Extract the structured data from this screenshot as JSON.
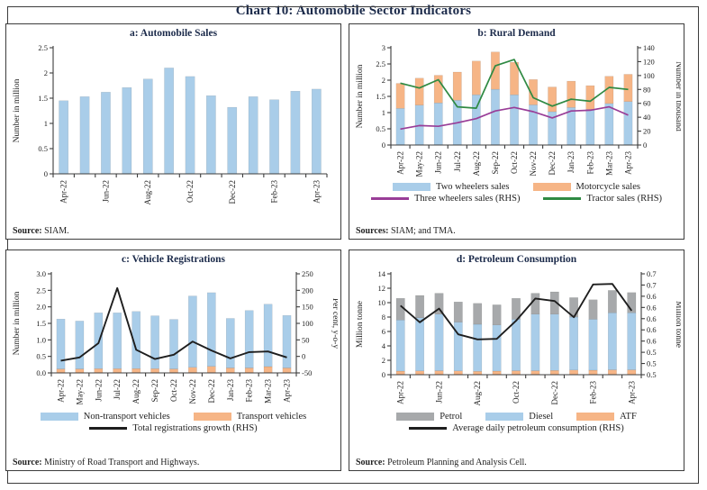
{
  "title": "Chart 10: Automobile Sector Indicators",
  "colors": {
    "bar_blue": "#A9CDE9",
    "bar_orange": "#F6B586",
    "bar_grey": "#A7A9AB",
    "line_purple": "#993D97",
    "line_green": "#2F8A43",
    "line_black": "#1E1E1E",
    "axis": "#3c3c3c",
    "title_text": "#1b2a4a"
  },
  "months": [
    "Apr-22",
    "May-22",
    "Jun-22",
    "Jul-22",
    "Aug-22",
    "Sep-22",
    "Oct-22",
    "Nov-22",
    "Dec-22",
    "Jan-23",
    "Feb-23",
    "Mar-23",
    "Apr-23"
  ],
  "chart_data": [
    {
      "type": "bar",
      "title": "a: Automobile Sales",
      "categories": [
        "Apr-22",
        "May-22",
        "Jun-22",
        "Jul-22",
        "Aug-22",
        "Sep-22",
        "Oct-22",
        "Nov-22",
        "Dec-22",
        "Jan-23",
        "Feb-23",
        "Mar-23",
        "Apr-23"
      ],
      "x_label_every": 2,
      "left_axis": {
        "label": "Number in million",
        "min": 0,
        "max": 2.5,
        "ticks": [
          "0",
          "0.5",
          "1",
          "1.5",
          "2",
          "2.5"
        ]
      },
      "bar_series": [
        {
          "name": "Automobile sales",
          "color_key": "bar_blue",
          "values": [
            1.45,
            1.53,
            1.62,
            1.71,
            1.88,
            2.1,
            1.93,
            1.55,
            1.32,
            1.53,
            1.47,
            1.64,
            1.68
          ]
        }
      ],
      "line_series": [],
      "legend_rows": [],
      "source_label": "Source:",
      "source_text": "SIAM."
    },
    {
      "type": "bar-line",
      "title": "b: Rural Demand",
      "categories": [
        "Apr-22",
        "May-22",
        "Jun-22",
        "Jul-22",
        "Aug-22",
        "Sep-22",
        "Oct-22",
        "Nov-22",
        "Dec-22",
        "Jan-23",
        "Feb-23",
        "Mar-23",
        "Apr-23"
      ],
      "x_label_every": 1,
      "left_axis": {
        "label": "Number in million",
        "min": 0,
        "max": 3,
        "ticks": [
          "0",
          "0.5",
          "1",
          "1.5",
          "2",
          "2.5",
          "3"
        ]
      },
      "right_axis": {
        "label": "Number in thousand",
        "min": 0,
        "max": 140,
        "ticks": [
          "0",
          "20",
          "40",
          "60",
          "80",
          "100",
          "120",
          "140"
        ]
      },
      "bar_series": [
        {
          "name": "Two wheelers sales",
          "color_key": "bar_blue",
          "values": [
            1.13,
            1.23,
            1.3,
            1.38,
            1.55,
            1.72,
            1.55,
            1.24,
            1.03,
            1.16,
            1.1,
            1.28,
            1.34
          ]
        },
        {
          "name": "Motorcycle sales",
          "color_key": "bar_orange",
          "values": [
            0.77,
            0.83,
            0.85,
            0.87,
            1.04,
            1.15,
            1.0,
            0.78,
            0.76,
            0.81,
            0.73,
            0.84,
            0.84
          ]
        }
      ],
      "line_series": [
        {
          "name": "Three wheelers sales (RHS)",
          "color_key": "line_purple",
          "axis": "right",
          "values": [
            23,
            28,
            27,
            32,
            38,
            49,
            54,
            48,
            39,
            49,
            50,
            55,
            43
          ]
        },
        {
          "name": "Tractor sales (RHS)",
          "color_key": "line_green",
          "axis": "right",
          "values": [
            89,
            82,
            94,
            55,
            53,
            114,
            123,
            68,
            56,
            66,
            63,
            83,
            80
          ]
        }
      ],
      "legend_rows": [
        [
          {
            "label": "Two wheelers sales",
            "swatch": "bar",
            "color_key": "bar_blue"
          },
          {
            "label": "Motorcycle sales",
            "swatch": "bar",
            "color_key": "bar_orange"
          }
        ],
        [
          {
            "label": "Three wheelers sales (RHS)",
            "swatch": "line",
            "color_key": "line_purple"
          },
          {
            "label": "Tractor sales (RHS)",
            "swatch": "line",
            "color_key": "line_green"
          }
        ]
      ],
      "source_label": "Sources:",
      "source_text": "SIAM; and TMA."
    },
    {
      "type": "bar-line",
      "title": "c: Vehicle Registrations",
      "categories": [
        "Apr-22",
        "May-22",
        "Jun-22",
        "Jul-22",
        "Aug-22",
        "Sep-22",
        "Oct-22",
        "Nov-22",
        "Dec-22",
        "Jan-23",
        "Feb-23",
        "Mar-23",
        "Apr-23"
      ],
      "x_label_every": 1,
      "left_axis": {
        "label": "Number in million",
        "min": 0,
        "max": 3,
        "ticks": [
          "0.0",
          "0.5",
          "1.0",
          "1.5",
          "2.0",
          "2.5",
          "3.0"
        ]
      },
      "right_axis": {
        "label": "Per cent, y-o-y",
        "min": -50,
        "max": 250,
        "ticks": [
          "-50",
          "0",
          "50",
          "100",
          "150",
          "200",
          "250"
        ]
      },
      "bar_series": [
        {
          "name": "Transport vehicles",
          "color_key": "bar_orange",
          "values": [
            0.12,
            0.12,
            0.13,
            0.13,
            0.13,
            0.13,
            0.12,
            0.17,
            0.2,
            0.15,
            0.15,
            0.19,
            0.15
          ]
        },
        {
          "name": "Non-transport vehicles",
          "color_key": "bar_blue",
          "values": [
            1.51,
            1.45,
            1.69,
            1.69,
            1.73,
            1.6,
            1.5,
            2.16,
            2.23,
            1.5,
            1.74,
            1.89,
            1.59
          ]
        }
      ],
      "line_series": [
        {
          "name": "Total registrations growth (RHS)",
          "color_key": "line_black",
          "axis": "right",
          "values": [
            -13,
            -3,
            40,
            207,
            20,
            -8,
            5,
            45,
            18,
            -6,
            13,
            15,
            -3
          ]
        }
      ],
      "legend_rows": [
        [
          {
            "label": "Non-transport vehicles",
            "swatch": "bar",
            "color_key": "bar_blue"
          },
          {
            "label": "Transport vehicles",
            "swatch": "bar",
            "color_key": "bar_orange"
          }
        ],
        [
          {
            "label": "Total registrations growth (RHS)",
            "swatch": "line",
            "color_key": "line_black"
          }
        ]
      ],
      "source_label": "Source:",
      "source_text": "Ministry of Road Transport and Highways."
    },
    {
      "type": "bar-line",
      "title": "d: Petroleum Consumption",
      "categories": [
        "Apr-22",
        "May-22",
        "Jun-22",
        "Jul-22",
        "Aug-22",
        "Sep-22",
        "Oct-22",
        "Nov-22",
        "Dec-22",
        "Jan-23",
        "Feb-23",
        "Mar-23",
        "Apr-23"
      ],
      "x_label_every": 2,
      "left_axis": {
        "label": "Million tonne",
        "min": 0,
        "max": 14,
        "ticks": [
          "0",
          "2",
          "4",
          "6",
          "8",
          "10",
          "12",
          "14"
        ]
      },
      "right_axis": {
        "label": "Million tonne",
        "min": 0.5,
        "max": 0.7,
        "ticks": [
          "0.5",
          "0.5",
          "0.5",
          "0.6",
          "0.6",
          "0.6",
          "0.6",
          "0.6",
          "0.7",
          "0.7"
        ]
      },
      "bar_series": [
        {
          "name": "ATF",
          "color_key": "bar_orange",
          "values": [
            0.5,
            0.52,
            0.55,
            0.52,
            0.48,
            0.5,
            0.55,
            0.55,
            0.6,
            0.65,
            0.62,
            0.68,
            0.68
          ]
        },
        {
          "name": "Diesel",
          "color_key": "bar_blue",
          "values": [
            7.1,
            7.38,
            7.85,
            6.78,
            6.52,
            6.4,
            7.15,
            7.85,
            7.8,
            7.35,
            7.08,
            7.92,
            7.92
          ]
        },
        {
          "name": "Petrol",
          "color_key": "bar_grey",
          "values": [
            3.0,
            3.1,
            2.9,
            2.8,
            2.9,
            2.8,
            2.9,
            2.9,
            3.1,
            2.7,
            2.7,
            3.1,
            2.8
          ]
        }
      ],
      "line_series": [
        {
          "name": "Average daily petroleum consumption (RHS)",
          "color_key": "line_black",
          "axis": "right",
          "values": [
            0.637,
            0.604,
            0.631,
            0.58,
            0.57,
            0.571,
            0.607,
            0.651,
            0.646,
            0.614,
            0.679,
            0.68,
            0.627
          ]
        }
      ],
      "legend_rows": [
        [
          {
            "label": "Petrol",
            "swatch": "bar",
            "color_key": "bar_grey"
          },
          {
            "label": "Diesel",
            "swatch": "bar",
            "color_key": "bar_blue"
          },
          {
            "label": "ATF",
            "swatch": "bar",
            "color_key": "bar_orange"
          }
        ],
        [
          {
            "label": "Average daily petroleum consumption (RHS)",
            "swatch": "line",
            "color_key": "line_black"
          }
        ]
      ],
      "source_label": "Source:",
      "source_text": "Petroleum Planning and Analysis Cell."
    }
  ]
}
